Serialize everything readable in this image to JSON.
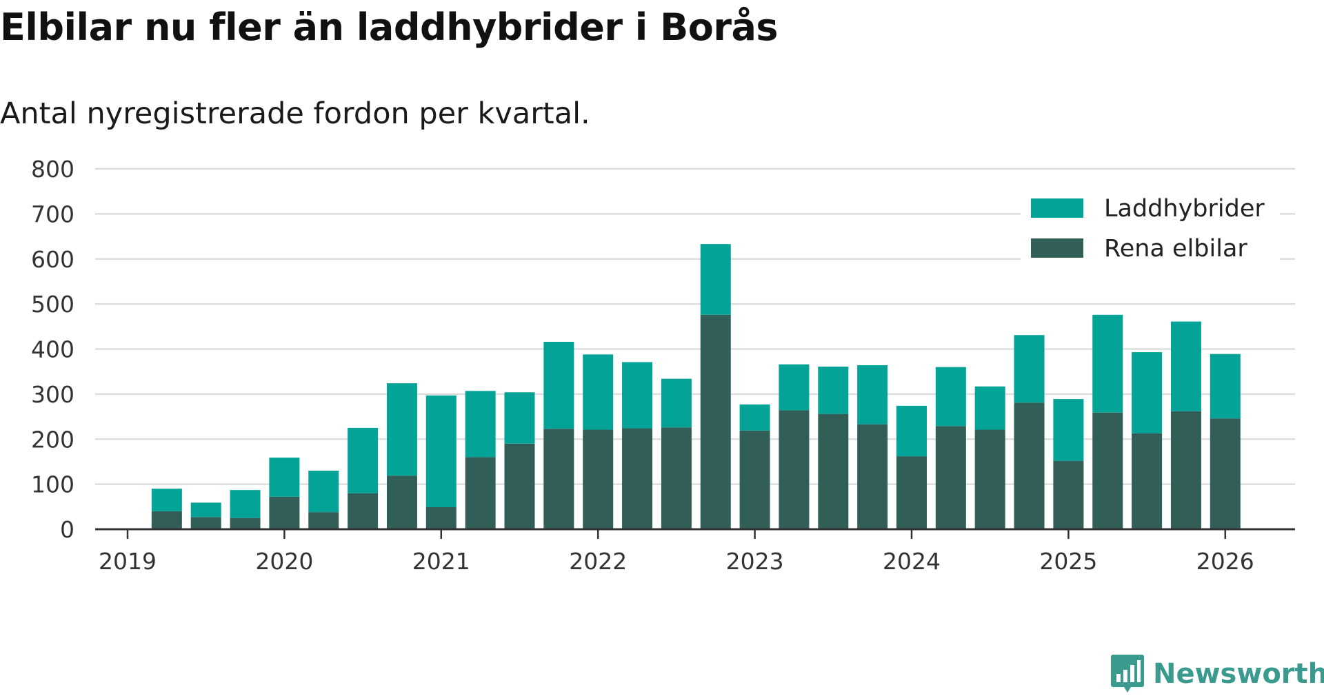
{
  "title": "Elbilar nu fler än laddhybrider i Borås",
  "subtitle": "Antal nyregistrerade fordon per kvartal.",
  "brand": {
    "name": "Newsworthy",
    "logo_icon": "bar-chart-speech-bubble-icon"
  },
  "colors": {
    "laddhybrider": "#03a397",
    "rena_elbilar": "#315f58",
    "grid": "#dedede",
    "axis": "#333333"
  },
  "chart_data": {
    "type": "bar",
    "stacked": true,
    "title": "Elbilar nu fler än laddhybrider i Borås",
    "subtitle": "Antal nyregistrerade fordon per kvartal.",
    "xlabel": "",
    "ylabel": "",
    "ylim": [
      0,
      800
    ],
    "yticks": [
      "0",
      "100",
      "200",
      "300",
      "400",
      "500",
      "600",
      "700",
      "800"
    ],
    "xticks": [
      "2019",
      "2020",
      "2021",
      "2022",
      "2023",
      "2024",
      "2025",
      "2026"
    ],
    "legend_position": "top-right",
    "categories": [
      "2019 Q2",
      "2019 Q3",
      "2019 Q4",
      "2020 Q1",
      "2020 Q2",
      "2020 Q3",
      "2020 Q4",
      "2021 Q1",
      "2021 Q2",
      "2021 Q3",
      "2021 Q4",
      "2022 Q1",
      "2022 Q2",
      "2022 Q3",
      "2022 Q4",
      "2023 Q1",
      "2023 Q2",
      "2023 Q3",
      "2023 Q4",
      "2024 Q1",
      "2024 Q2",
      "2024 Q3",
      "2024 Q4",
      "2025 Q1",
      "2025 Q2",
      "2025 Q3",
      "2025 Q4",
      "2026 Q1"
    ],
    "series": [
      {
        "name": "Rena elbilar",
        "values": [
          40,
          27,
          25,
          72,
          38,
          80,
          119,
          49,
          160,
          190,
          223,
          221,
          224,
          226,
          476,
          219,
          264,
          256,
          233,
          162,
          229,
          221,
          281,
          152,
          259,
          213,
          262,
          246
        ]
      },
      {
        "name": "Laddhybrider",
        "values": [
          50,
          32,
          62,
          87,
          92,
          145,
          205,
          248,
          147,
          114,
          193,
          167,
          147,
          108,
          157,
          58,
          102,
          105,
          131,
          112,
          131,
          96,
          150,
          137,
          217,
          180,
          199,
          143
        ]
      }
    ],
    "legend": [
      "Laddhybrider",
      "Rena elbilar"
    ]
  }
}
